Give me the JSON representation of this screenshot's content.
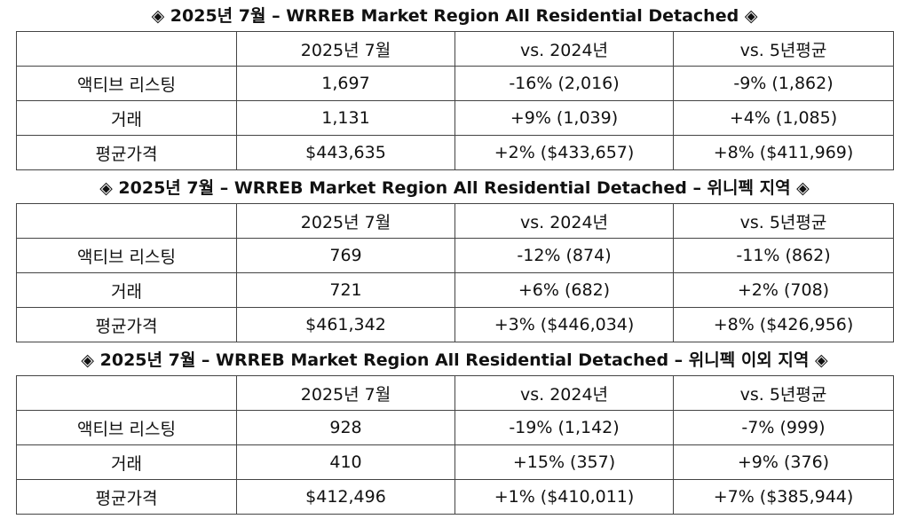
{
  "columns": [
    "",
    "2025년 7월",
    "vs. 2024년",
    "vs. 5년평균"
  ],
  "tables": [
    {
      "title": "◈ 2025년 7월 – WRREB Market Region All Residential Detached ◈",
      "rows": [
        [
          "액티브 리스팅",
          "1,697",
          "-16% (2,016)",
          "-9% (1,862)"
        ],
        [
          "거래",
          "1,131",
          "+9% (1,039)",
          "+4% (1,085)"
        ],
        [
          "평균가격",
          "$443,635",
          "+2% ($433,657)",
          "+8% ($411,969)"
        ]
      ]
    },
    {
      "title": "◈ 2025년 7월 – WRREB Market Region All Residential Detached – 위니펙 지역 ◈",
      "rows": [
        [
          "액티브 리스팅",
          "769",
          "-12% (874)",
          "-11% (862)"
        ],
        [
          "거래",
          "721",
          "+6% (682)",
          "+2% (708)"
        ],
        [
          "평균가격",
          "$461,342",
          "+3% ($446,034)",
          "+8% ($426,956)"
        ]
      ]
    },
    {
      "title": "◈ 2025년 7월 – WRREB Market Region All Residential Detached – 위니펙 이외 지역 ◈",
      "rows": [
        [
          "액티브 리스팅",
          "928",
          "-19% (1,142)",
          "-7% (999)"
        ],
        [
          "거래",
          "410",
          "+15% (357)",
          "+9% (376)"
        ],
        [
          "평균가격",
          "$412,496",
          "+1% ($410,011)",
          "+7% ($385,944)"
        ]
      ]
    }
  ]
}
